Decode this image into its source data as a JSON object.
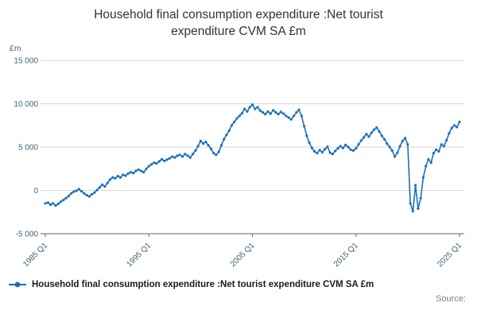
{
  "title": "Household final consumption expenditure :Net tourist expenditure CVM SA £m",
  "y_axis_unit": "£m",
  "legend": {
    "label": "Household final consumption expenditure :Net tourist expenditure CVM SA £m"
  },
  "source_label": "Source:",
  "colors": {
    "line": "#1d70b8",
    "grid": "#d9d9d9",
    "axis": "#666666",
    "tick_text": "#3e647a"
  },
  "chart_data": {
    "type": "line",
    "title": "Household final consumption expenditure :Net tourist expenditure CVM SA £m",
    "xlabel": "",
    "ylabel": "£m",
    "x_start": "1985 Q1",
    "x_end": "2025 Q1",
    "frequency": "quarterly",
    "ylim": [
      -5000,
      15000
    ],
    "grid": "horizontal",
    "legend_position": "bottom",
    "yticks": [
      {
        "value": 15000,
        "label": "15 000"
      },
      {
        "value": 10000,
        "label": "10 000"
      },
      {
        "value": 5000,
        "label": "5 000"
      },
      {
        "value": 0,
        "label": "0"
      },
      {
        "value": -5000,
        "label": "-5 000"
      }
    ],
    "xticks": [
      {
        "index": 0,
        "label": "1985 Q1"
      },
      {
        "index": 40,
        "label": "1995 Q1"
      },
      {
        "index": 80,
        "label": "2005 Q1"
      },
      {
        "index": 120,
        "label": "2015 Q1"
      },
      {
        "index": 160,
        "label": "2025 Q1"
      }
    ],
    "series": [
      {
        "name": "Household final consumption expenditure :Net tourist expenditure CVM SA £m",
        "values": [
          -1500,
          -1400,
          -1650,
          -1500,
          -1750,
          -1550,
          -1300,
          -1100,
          -900,
          -650,
          -350,
          -150,
          -50,
          150,
          -100,
          -350,
          -550,
          -700,
          -450,
          -250,
          50,
          350,
          650,
          450,
          850,
          1250,
          1500,
          1400,
          1650,
          1500,
          1800,
          1700,
          1950,
          2100,
          2000,
          2250,
          2400,
          2250,
          2100,
          2500,
          2800,
          3000,
          3200,
          3100,
          3350,
          3600,
          3400,
          3550,
          3700,
          3900,
          3800,
          4000,
          4100,
          3900,
          4200,
          4000,
          3800,
          4200,
          4600,
          5100,
          5700,
          5400,
          5600,
          5200,
          4800,
          4300,
          4100,
          4450,
          5200,
          5900,
          6400,
          6900,
          7500,
          7900,
          8300,
          8600,
          8900,
          9400,
          9100,
          9600,
          9900,
          9400,
          9600,
          9200,
          9000,
          8800,
          9100,
          8850,
          9250,
          9000,
          8800,
          9050,
          8850,
          8600,
          8400,
          8200,
          8600,
          9000,
          9300,
          8600,
          7400,
          6300,
          5500,
          4900,
          4500,
          4300,
          4650,
          4400,
          4750,
          5050,
          4350,
          4200,
          4550,
          4850,
          5100,
          4900,
          5250,
          5000,
          4700,
          4600,
          4850,
          5300,
          5750,
          6100,
          6500,
          6200,
          6650,
          7000,
          7250,
          6800,
          6300,
          5900,
          5400,
          5000,
          4600,
          3900,
          4350,
          5100,
          5700,
          6050,
          5300,
          -1500,
          -2400,
          600,
          -2100,
          -900,
          1500,
          2800,
          3600,
          3200,
          4300,
          4700,
          4500,
          5300,
          5100,
          5800,
          6600,
          7200,
          7500,
          7300,
          7900
        ]
      }
    ]
  }
}
